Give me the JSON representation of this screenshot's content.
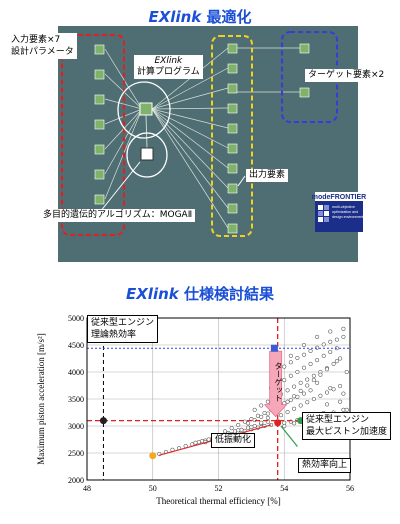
{
  "top_title": {
    "latin": "EXlink",
    "jp": "最適化"
  },
  "workflow": {
    "input_label_line1": "入力要素×7",
    "input_label_line2": "設計パラメータ",
    "program_label_line1": "EXlink",
    "program_label_line2": "計算プログラム",
    "target_label": "ターゲット要素×2",
    "output_label": "出力要素",
    "algorithm_label": "多目的遺伝的アルゴリズム：MOGAⅡ",
    "logo_brand": "modeFRONTIER",
    "logo_tagline": "multi-objective optimization and design environment",
    "colors": {
      "background": "#4f6e73",
      "input_box": "#e02020",
      "target_box": "#3a3ad8",
      "output_box": "#f0d020",
      "node": "#7fb26a",
      "line": "#d8e0d8"
    }
  },
  "bottom_title": {
    "latin": "EXlink",
    "jp": "仕様検討結果"
  },
  "chart_data": {
    "type": "scatter",
    "xlabel": "Theoretical thermal efficiency [%]",
    "ylabel": "Maximum piston acceleration [m/s²]",
    "xlim": [
      48,
      56
    ],
    "ylim": [
      2000,
      5000
    ],
    "x_ticks": [
      "48",
      "50",
      "52",
      "54",
      "56"
    ],
    "y_ticks": [
      "2000",
      "2500",
      "3000",
      "3500",
      "4000",
      "4500",
      "5000"
    ],
    "grid": true,
    "points": [
      [
        50.0,
        2440
      ],
      [
        50.2,
        2480
      ],
      [
        50.4,
        2520
      ],
      [
        50.6,
        2560
      ],
      [
        50.8,
        2590
      ],
      [
        51.0,
        2630
      ],
      [
        51.2,
        2660
      ],
      [
        51.4,
        2700
      ],
      [
        51.6,
        2730
      ],
      [
        51.8,
        2760
      ],
      [
        52.0,
        2790
      ],
      [
        52.2,
        2820
      ],
      [
        52.4,
        2850
      ],
      [
        52.6,
        2880
      ],
      [
        52.8,
        2910
      ],
      [
        53.0,
        2940
      ],
      [
        53.2,
        2970
      ],
      [
        53.4,
        3000
      ],
      [
        53.6,
        3020
      ],
      [
        53.8,
        3040
      ],
      [
        54.0,
        3060
      ],
      [
        54.2,
        3080
      ],
      [
        54.4,
        3110
      ],
      [
        54.6,
        3140
      ],
      [
        54.8,
        3170
      ],
      [
        55.0,
        3200
      ],
      [
        55.2,
        3240
      ],
      [
        51.3,
        2690
      ],
      [
        51.5,
        2720
      ],
      [
        51.7,
        2750
      ],
      [
        51.9,
        2800
      ],
      [
        52.1,
        2830
      ],
      [
        52.3,
        2870
      ],
      [
        52.5,
        2900
      ],
      [
        52.7,
        2930
      ],
      [
        52.9,
        2970
      ],
      [
        53.1,
        3000
      ],
      [
        53.3,
        3040
      ],
      [
        53.5,
        3080
      ],
      [
        52.2,
        2900
      ],
      [
        52.4,
        2960
      ],
      [
        52.6,
        3020
      ],
      [
        52.8,
        3080
      ],
      [
        53.0,
        3130
      ],
      [
        53.2,
        3190
      ],
      [
        53.4,
        3240
      ],
      [
        53.6,
        3300
      ],
      [
        53.8,
        3360
      ],
      [
        54.0,
        3420
      ],
      [
        54.2,
        3480
      ],
      [
        54.4,
        3540
      ],
      [
        54.6,
        3600
      ],
      [
        54.8,
        3660
      ],
      [
        53.1,
        3300
      ],
      [
        53.3,
        3380
      ],
      [
        53.5,
        3450
      ],
      [
        53.7,
        3520
      ],
      [
        53.9,
        3590
      ],
      [
        54.1,
        3660
      ],
      [
        54.3,
        3730
      ],
      [
        54.5,
        3800
      ],
      [
        54.7,
        3860
      ],
      [
        54.9,
        3930
      ],
      [
        55.1,
        4000
      ],
      [
        55.3,
        4070
      ],
      [
        53.6,
        3700
      ],
      [
        53.8,
        3780
      ],
      [
        54.0,
        3850
      ],
      [
        54.2,
        3930
      ],
      [
        54.4,
        4000
      ],
      [
        54.6,
        4080
      ],
      [
        54.8,
        4150
      ],
      [
        55.0,
        4220
      ],
      [
        55.2,
        4300
      ],
      [
        55.4,
        4370
      ],
      [
        55.6,
        4440
      ],
      [
        54.0,
        4100
      ],
      [
        54.2,
        4180
      ],
      [
        54.4,
        4260
      ],
      [
        54.6,
        4320
      ],
      [
        54.8,
        4390
      ],
      [
        55.0,
        4450
      ],
      [
        55.2,
        4510
      ],
      [
        55.4,
        4560
      ],
      [
        55.6,
        4600
      ],
      [
        55.8,
        4650
      ],
      [
        53.9,
        3200
      ],
      [
        54.1,
        3260
      ],
      [
        54.3,
        3320
      ],
      [
        54.5,
        3380
      ],
      [
        54.7,
        3440
      ],
      [
        54.9,
        3500
      ],
      [
        55.1,
        3560
      ],
      [
        55.3,
        3620
      ],
      [
        55.5,
        3680
      ],
      [
        55.7,
        3740
      ],
      [
        54.0,
        3000
      ],
      [
        54.3,
        3050
      ],
      [
        54.6,
        3100
      ],
      [
        54.9,
        3150
      ],
      [
        55.2,
        3200
      ],
      [
        55.5,
        3250
      ],
      [
        55.8,
        3300
      ],
      [
        53.5,
        3150
      ],
      [
        53.7,
        3250
      ],
      [
        53.9,
        3350
      ],
      [
        54.1,
        3450
      ],
      [
        54.3,
        3550
      ],
      [
        54.5,
        3650
      ],
      [
        54.7,
        3750
      ],
      [
        54.9,
        3850
      ],
      [
        55.1,
        3950
      ],
      [
        55.3,
        4050
      ],
      [
        55.5,
        4150
      ],
      [
        55.7,
        4250
      ],
      [
        52.9,
        3050
      ],
      [
        53.1,
        3110
      ],
      [
        53.3,
        3170
      ],
      [
        53.5,
        3230
      ],
      [
        53.7,
        3290
      ],
      [
        54.6,
        4500
      ],
      [
        55.0,
        4650
      ],
      [
        55.4,
        4750
      ],
      [
        55.8,
        4800
      ],
      [
        54.2,
        4300
      ],
      [
        55.6,
        4200
      ],
      [
        55.9,
        4000
      ],
      [
        55.0,
        3800
      ],
      [
        55.4,
        3700
      ],
      [
        55.8,
        3600
      ],
      [
        55.3,
        3400
      ],
      [
        55.7,
        3450
      ],
      [
        55.9,
        3300
      ],
      [
        51.6,
        2700
      ],
      [
        51.9,
        2780
      ],
      [
        52.3,
        2840
      ],
      [
        52.6,
        2920
      ],
      [
        53.0,
        2980
      ],
      [
        53.3,
        3060
      ]
    ],
    "highlight_points": [
      {
        "x": 53.7,
        "y": 4440,
        "color": "#3b5bd6",
        "shape": "square"
      },
      {
        "x": 53.8,
        "y": 3060,
        "color": "#e02020",
        "shape": "circle"
      },
      {
        "x": 50.0,
        "y": 2450,
        "color": "#f5a623",
        "shape": "circle"
      },
      {
        "x": 48.5,
        "y": 3100,
        "color": "#222222",
        "shape": "circle"
      },
      {
        "x": 54.5,
        "y": 3100,
        "color": "#2e9e4a",
        "shape": "circle"
      }
    ],
    "lines": {
      "conventional_efficiency_x": 48.5,
      "optimum_efficiency_x": 53.8,
      "conventional_acceleration_y": 3100,
      "target_acceleration_y": 4440
    },
    "annotations": {
      "conventional_engine_efficiency_line1": "従来型エンジン",
      "conventional_engine_efficiency_line2": "理論熱効率",
      "conventional_engine_accel_line1": "従来型エンジン",
      "conventional_engine_accel_line2": "最大ピストン加速度",
      "target_label": "ターゲット",
      "low_vibration_label": "低振動化",
      "efficiency_improve_label": "熱効率向上"
    }
  }
}
